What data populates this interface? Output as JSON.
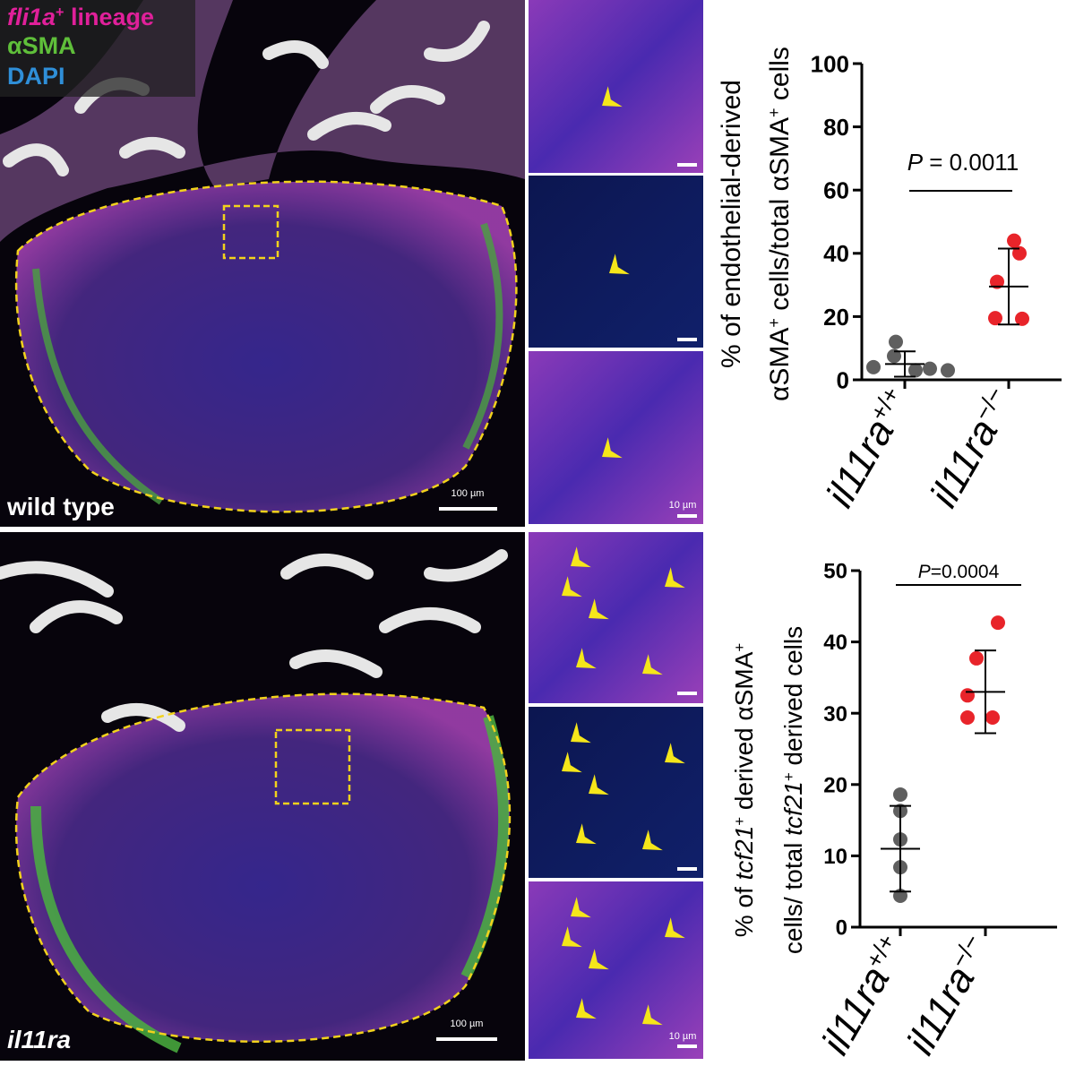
{
  "panels": {
    "legend": [
      {
        "color": "#e0209a",
        "segments": [
          {
            "text": "fli1a",
            "style": "italic"
          },
          {
            "text": "+",
            "style": "sup"
          },
          {
            "text": " lineage"
          }
        ]
      },
      {
        "color": "#5fbf3a",
        "segments": [
          {
            "text": "αSMA"
          }
        ]
      },
      {
        "color": "#2f8fd8",
        "segments": [
          {
            "text": "DAPI"
          }
        ]
      }
    ],
    "top_label": "wild type",
    "bottom_label": "il11ra",
    "scale_bar_large": "100 µm",
    "scale_bar_small": "10 µm"
  },
  "chart_data": [
    {
      "type": "scatter",
      "ylabel": [
        [
          {
            "text": "% of endothelial-derived"
          }
        ],
        [
          {
            "text": "αSMA"
          },
          {
            "text": "+",
            "style": "sup"
          },
          {
            "text": " cells/total αSMA"
          },
          {
            "text": "+",
            "style": "sup"
          },
          {
            "text": " cells"
          }
        ]
      ],
      "annotation": [
        {
          "text": "P",
          "style": "italic"
        },
        {
          "text": " = 0.0011"
        }
      ],
      "categories": [
        [
          {
            "text": "il11ra",
            "style": "italic"
          },
          {
            "text": "+/+",
            "style": "sup"
          }
        ],
        [
          {
            "text": "il11ra",
            "style": "italic"
          },
          {
            "text": "−/−",
            "style": "sup"
          }
        ]
      ],
      "ylim": [
        0,
        100
      ],
      "yticks": [
        0,
        20,
        40,
        60,
        80,
        100
      ],
      "series": [
        {
          "color": "#5f5f5f",
          "values": [
            4,
            7.5,
            12,
            3,
            3.5,
            3
          ],
          "mean": 5,
          "sd": 4
        },
        {
          "color": "#e8242a",
          "values": [
            44,
            40,
            31,
            19.5,
            19.3
          ],
          "mean": 29.5,
          "sd": 12
        }
      ]
    },
    {
      "type": "scatter",
      "ylabel": [
        [
          {
            "text": "% of "
          },
          {
            "text": "tcf21",
            "style": "italic"
          },
          {
            "text": "+",
            "style": "sup"
          },
          {
            "text": " derived αSMA"
          },
          {
            "text": "+",
            "style": "sup"
          }
        ],
        [
          {
            "text": "cells/ total "
          },
          {
            "text": "tcf21",
            "style": "italic"
          },
          {
            "text": "+",
            "style": "sup"
          },
          {
            "text": " derived cells"
          }
        ]
      ],
      "annotation": [
        {
          "text": "P",
          "style": "italic"
        },
        {
          "text": "=0.0004"
        }
      ],
      "categories": [
        [
          {
            "text": "il11ra",
            "style": "italic"
          },
          {
            "text": "+/+",
            "style": "sup"
          }
        ],
        [
          {
            "text": "il11ra",
            "style": "italic"
          },
          {
            "text": "−/−",
            "style": "sup"
          }
        ]
      ],
      "ylim": [
        0,
        50
      ],
      "yticks": [
        0,
        10,
        20,
        30,
        40,
        50
      ],
      "series": [
        {
          "color": "#5f5f5f",
          "values": [
            18.6,
            16.3,
            12.3,
            8.4,
            4.4
          ],
          "mean": 11,
          "sd": 6
        },
        {
          "color": "#e8242a",
          "values": [
            42.7,
            37.7,
            32.5,
            29.4,
            29.4
          ],
          "mean": 33,
          "sd": 5.8
        }
      ]
    }
  ]
}
